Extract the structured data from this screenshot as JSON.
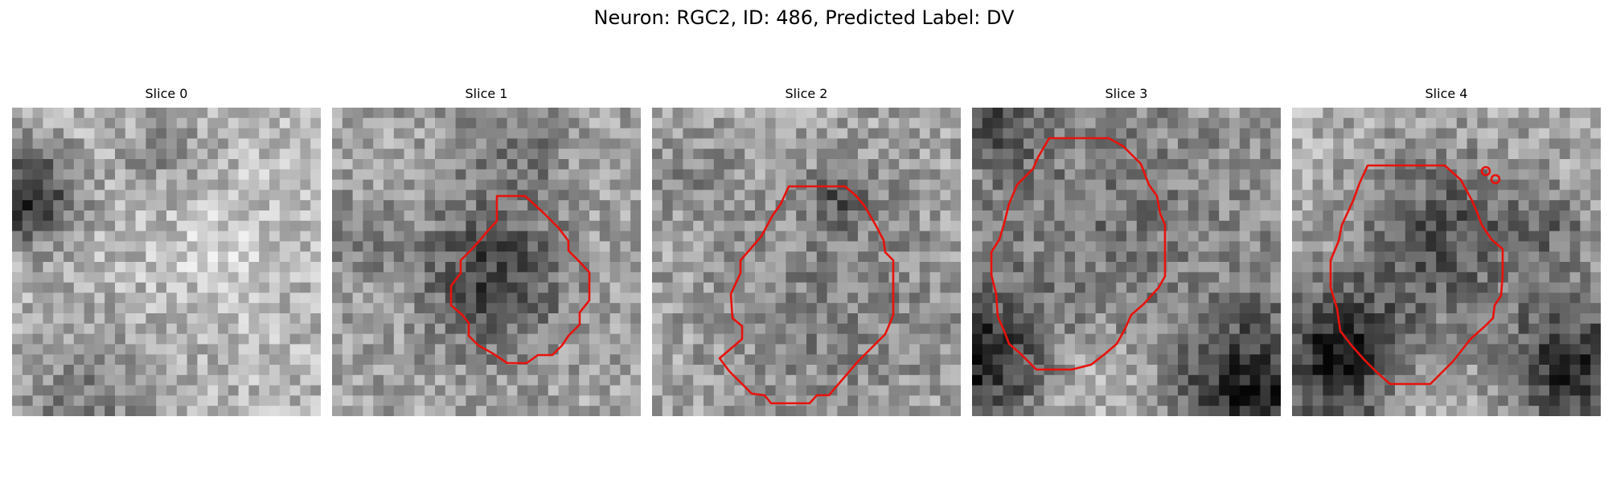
{
  "figure": {
    "title": "Neuron: RGC2, ID: 486, Predicted Label: DV"
  },
  "panels": [
    {
      "title": "Slice 0",
      "has_contour": false
    },
    {
      "title": "Slice 1",
      "has_contour": true
    },
    {
      "title": "Slice 2",
      "has_contour": true
    },
    {
      "title": "Slice 3",
      "has_contour": true
    },
    {
      "title": "Slice 4",
      "has_contour": true
    }
  ],
  "colors": {
    "contour": "#e8120c",
    "background": "#ffffff"
  }
}
